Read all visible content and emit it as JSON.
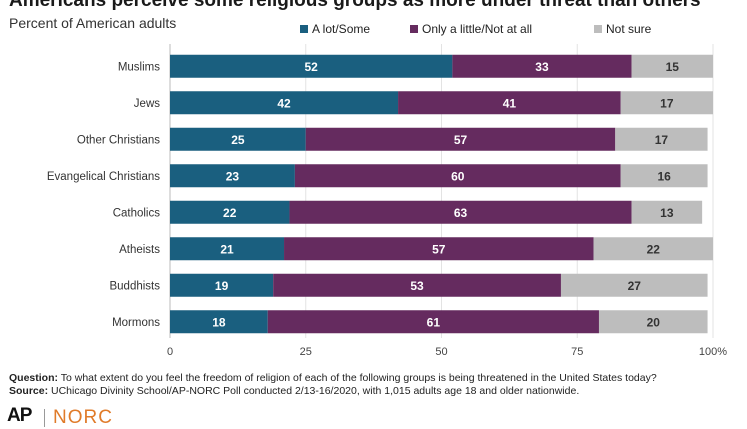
{
  "title": "Americans perceive some religious groups as more under threat than others",
  "subtitle": "Percent of American adults",
  "chart_data": {
    "type": "bar",
    "orientation": "horizontal",
    "stacked": true,
    "categories": [
      "Muslims",
      "Jews",
      "Other Christians",
      "Evangelical Christians",
      "Catholics",
      "Atheists",
      "Buddhists",
      "Mormons"
    ],
    "series": [
      {
        "name": "A lot/Some",
        "color": "#1a5f7f",
        "values": [
          52,
          42,
          25,
          23,
          22,
          21,
          19,
          18
        ]
      },
      {
        "name": "Only a little/Not at all",
        "color": "#652b5f",
        "values": [
          33,
          41,
          57,
          60,
          63,
          57,
          53,
          61
        ]
      },
      {
        "name": "Not sure",
        "color": "#bdbdbd",
        "values": [
          15,
          17,
          17,
          16,
          13,
          22,
          27,
          20
        ]
      }
    ],
    "xlim": [
      0,
      100
    ],
    "xticks": [
      "0",
      "25",
      "50",
      "75",
      "100%"
    ],
    "grid": true,
    "legend": "top"
  },
  "footnote": {
    "question_label": "Question:",
    "question_text": " To what extent do you feel the freedom of religion of each of the following groups is being threatened in the United States today?",
    "source_label": "Source:",
    "source_text": " UChicago Divinity School/AP-NORC Poll conducted 2/13-16/2020, with 1,015 adults age 18 and older nationwide."
  },
  "logos": {
    "ap": "AP",
    "norc": "NORC"
  }
}
